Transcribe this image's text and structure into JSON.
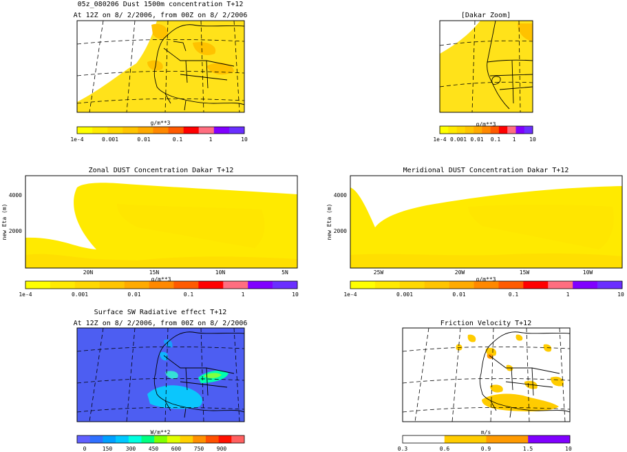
{
  "colors": {
    "dust": [
      "#ffff00",
      "#ffea00",
      "#ffd800",
      "#ffc400",
      "#ffaa00",
      "#ff8800",
      "#ff5a00",
      "#ff0000",
      "#ff6e80",
      "#8000ff",
      "#6a2fff"
    ],
    "sw": [
      "#6060ff",
      "#3070ff",
      "#00a0ff",
      "#00c8ff",
      "#00ffe0",
      "#00ff80",
      "#80ff00",
      "#e0ff00",
      "#ffd000",
      "#ff9000",
      "#ff5000",
      "#ff1000",
      "#ff6060"
    ],
    "ustar": [
      "#ffffff",
      "#ffcc00",
      "#ff9a00",
      "#8000ff"
    ],
    "map_dust_base": "#ffe21a",
    "map_dust_hot": "#ffc200",
    "sw_base": "#4d5ef2",
    "fv_dust": "#ffcc00"
  },
  "panels": {
    "main": {
      "title": "05z_080206 Dust 1500m concentration T+12",
      "subtitle": "At 12Z on 8/ 2/2006, from 00Z on 8/ 2/2006",
      "unit": "g/m**3",
      "ticks": [
        "1e-4",
        "0.001",
        "0.01",
        "0.1",
        "1",
        "10"
      ]
    },
    "dakar": {
      "title": "[Dakar Zoom]",
      "unit": "g/m**3",
      "ticks": [
        "1e-4",
        "0.001",
        "0.01",
        "0.1",
        "1",
        "10"
      ]
    },
    "zonal": {
      "title": "Zonal DUST Concentration Dakar T+12",
      "ylabel": "new Eta (m)",
      "yticks": [
        "4000",
        "2000"
      ],
      "xticks": [
        "20N",
        "15N",
        "10N",
        "5N"
      ],
      "unit": "g/m**3",
      "ticks": [
        "1e-4",
        "0.001",
        "0.01",
        "0.1",
        "1",
        "10"
      ]
    },
    "meridional": {
      "title": "Meridional DUST Concentration Dakar T+12",
      "ylabel": "new Eta (m)",
      "yticks": [
        "4000",
        "2000"
      ],
      "xticks": [
        "25W",
        "20W",
        "15W",
        "10W"
      ],
      "unit": "g/m**3",
      "ticks": [
        "1e-4",
        "0.001",
        "0.01",
        "0.1",
        "1",
        "10"
      ]
    },
    "sw": {
      "title": "Surface SW Radiative effect T+12",
      "subtitle": "At 12Z on 8/ 2/2006, from 00Z on 8/ 2/2006",
      "unit": "W/m**2",
      "ticks": [
        "0",
        "150",
        "300",
        "450",
        "600",
        "750",
        "900"
      ]
    },
    "fv": {
      "title": "Friction Velocity T+12",
      "unit": "m/s",
      "ticks": [
        "0.3",
        "0.6",
        "0.9",
        "1.5",
        "10"
      ]
    }
  },
  "chart_data": [
    {
      "type": "heatmap",
      "title": "05z_080206 Dust 1500m concentration T+12",
      "subtitle": "At 12Z on 8/ 2/2006, from 00Z on 8/ 2/2006",
      "colorbar_label": "g/m**3",
      "colorbar_ticks": [
        "1e-4",
        "0.001",
        "0.01",
        "0.1",
        "1",
        "10"
      ]
    },
    {
      "type": "heatmap",
      "title": "[Dakar Zoom]",
      "colorbar_label": "g/m**3",
      "colorbar_ticks": [
        "1e-4",
        "0.001",
        "0.01",
        "0.1",
        "1",
        "10"
      ]
    },
    {
      "type": "area",
      "title": "Zonal DUST Concentration Dakar T+12",
      "ylabel": "new Eta (m)",
      "xticks": [
        "20N",
        "15N",
        "10N",
        "5N"
      ],
      "yticks": [
        2000,
        4000
      ],
      "colorbar_label": "g/m**3"
    },
    {
      "type": "area",
      "title": "Meridional DUST Concentration Dakar T+12",
      "ylabel": "new Eta (m)",
      "xticks": [
        "25W",
        "20W",
        "15W",
        "10W"
      ],
      "yticks": [
        2000,
        4000
      ],
      "colorbar_label": "g/m**3"
    },
    {
      "type": "heatmap",
      "title": "Surface SW Radiative effect T+12",
      "subtitle": "At 12Z on 8/ 2/2006, from 00Z on 8/ 2/2006",
      "colorbar_label": "W/m**2",
      "colorbar_ticks": [
        0,
        150,
        300,
        450,
        600,
        750,
        900
      ]
    },
    {
      "type": "heatmap",
      "title": "Friction Velocity T+12",
      "colorbar_label": "m/s",
      "colorbar_ticks": [
        0.3,
        0.6,
        0.9,
        1.5,
        10
      ]
    }
  ]
}
